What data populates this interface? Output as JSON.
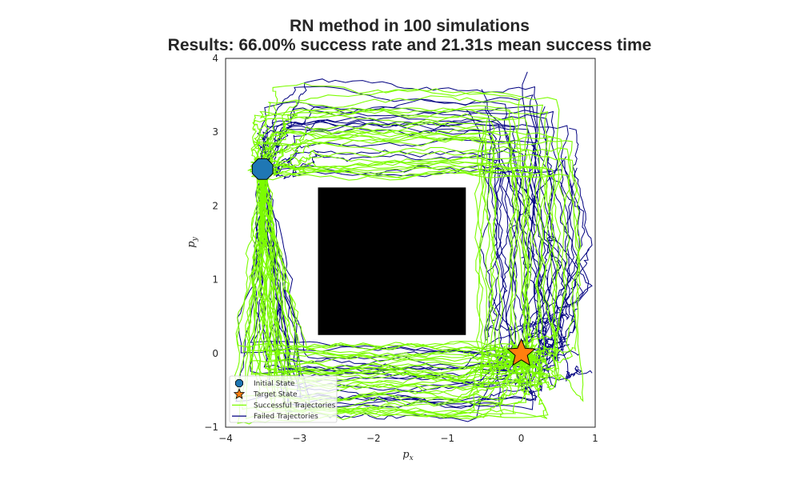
{
  "chart_data": {
    "type": "line",
    "title_line1": "RN method in 100 simulations",
    "title_line2": "Results: 66.00% success rate and 21.31s mean success time",
    "xlabel_base": "p",
    "xlabel_sub": "x",
    "ylabel_base": "p",
    "ylabel_sub": "y",
    "xlim": [
      -4,
      1
    ],
    "ylim": [
      -1,
      4
    ],
    "xticks": [
      "−4",
      "−3",
      "−2",
      "−1",
      "0",
      "1"
    ],
    "xtick_values": [
      -4,
      -3,
      -2,
      -1,
      0,
      1
    ],
    "yticks": [
      "−1",
      "0",
      "1",
      "2",
      "3",
      "4"
    ],
    "ytick_values": [
      -1,
      0,
      1,
      2,
      3,
      4
    ],
    "grid": false,
    "legend_position": "lower-left",
    "obstacle": {
      "x_min": -2.75,
      "x_max": -0.75,
      "y_min": 0.25,
      "y_max": 2.25,
      "color": "#000000"
    },
    "initial_state": {
      "x": -3.5,
      "y": 2.5,
      "color": "#1f77b4"
    },
    "target_state": {
      "x": 0.0,
      "y": 0.0,
      "color": "#ff7f0e"
    },
    "simulations": 100,
    "successful_count": 66,
    "failed_count": 34,
    "success_color": "#7cfc00",
    "failure_color": "#000080",
    "legend": [
      {
        "label": "Initial State",
        "marker": "octagon",
        "color": "#1f77b4"
      },
      {
        "label": "Target State",
        "marker": "star",
        "color": "#ff7f0e"
      },
      {
        "label": "Successful Trajectories",
        "marker": "line",
        "color": "#7cfc00"
      },
      {
        "label": "Failed Trajectories",
        "marker": "line",
        "color": "#000080"
      }
    ]
  }
}
